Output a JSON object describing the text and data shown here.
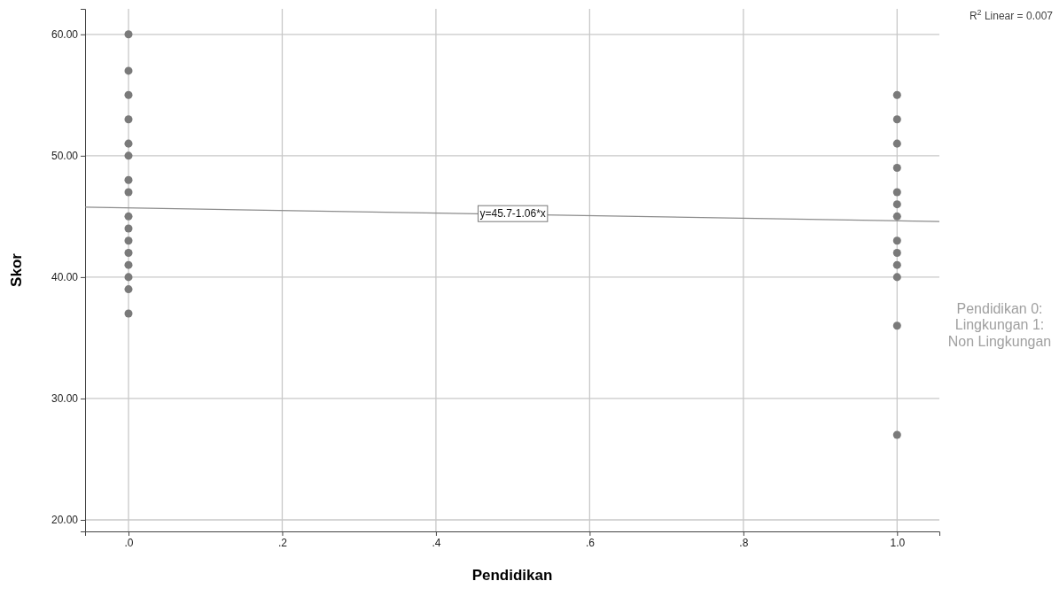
{
  "chart_data": {
    "type": "scatter",
    "xlabel": "Pendidikan",
    "ylabel": "Skor",
    "xlim": [
      -0.0565,
      1.055
    ],
    "ylim": [
      19.05,
      62.1
    ],
    "xticks": [
      {
        "value": 0,
        "label": ".0"
      },
      {
        "value": 0.2,
        "label": ".2"
      },
      {
        "value": 0.4,
        "label": ".4"
      },
      {
        "value": 0.6,
        "label": ".6"
      },
      {
        "value": 0.8,
        "label": ".8"
      },
      {
        "value": 1,
        "label": "1.0"
      }
    ],
    "yticks": [
      {
        "value": 20,
        "label": "20.00"
      },
      {
        "value": 30,
        "label": "30.00"
      },
      {
        "value": 40,
        "label": "40.00"
      },
      {
        "value": 50,
        "label": "50.00"
      },
      {
        "value": 60,
        "label": "60.00"
      }
    ],
    "grid": true,
    "marker": "circle",
    "series": [
      {
        "color": "#7a7a7a",
        "x": [
          0,
          0,
          0,
          0,
          0,
          0,
          0,
          0,
          0,
          0,
          0,
          0,
          0,
          0,
          0,
          0,
          1,
          1,
          1,
          1,
          1,
          1,
          1,
          1,
          1,
          1,
          1,
          1,
          1
        ],
        "values": [
          60,
          57,
          55,
          53,
          51,
          50,
          48,
          47,
          45,
          44,
          43,
          42,
          41,
          40,
          39,
          37,
          55,
          53,
          51,
          49,
          47,
          46,
          45,
          43,
          42,
          41,
          40,
          36,
          27
        ]
      },
      {
        "type": "line",
        "marker": "none",
        "color": "#8c8c8c",
        "x": [
          -0.0565,
          1.055
        ],
        "values": [
          45.76,
          44.58
        ]
      }
    ],
    "annotations": [
      "R$^{2}$ Linear = 0.007",
      {
        "text": "y=45.7-1.06*x",
        "x": 0.5,
        "y": 45.17
      },
      "Pendidikan 0: Lingkungan 1: Non Lingkungan"
    ]
  }
}
